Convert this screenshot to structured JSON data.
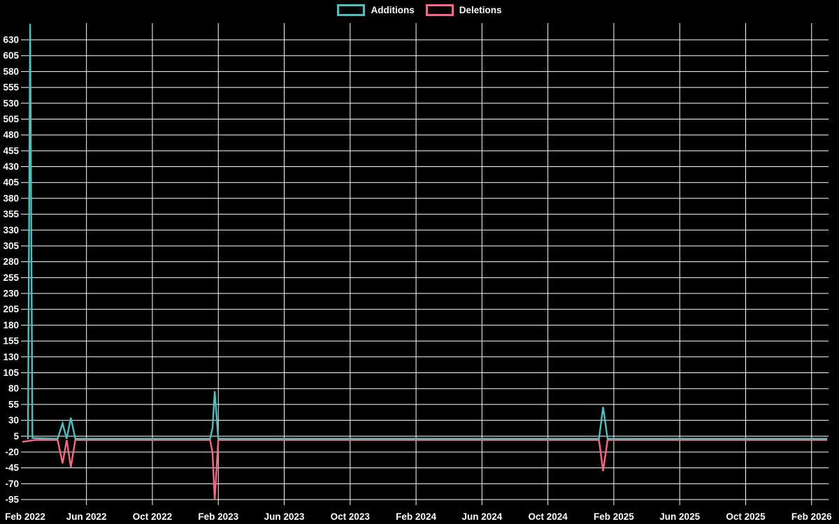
{
  "chart_data": {
    "type": "line",
    "title": "",
    "background_color": "#000000",
    "grid_color": "#ffffff",
    "text_color": "#ffffff",
    "legend": {
      "position": "top",
      "entries": [
        "Additions",
        "Deletions"
      ]
    },
    "x_axis": {
      "label": "",
      "unit": "months since Feb 2022",
      "tick_labels": [
        "Feb 2022",
        "Jun 2022",
        "Oct 2022",
        "Feb 2023",
        "Jun 2023",
        "Oct 2023",
        "Feb 2024",
        "Jun 2024",
        "Oct 2024",
        "Feb 2025",
        "Jun 2025",
        "Oct 2025",
        "Feb 2026"
      ],
      "tick_month_offsets": [
        0,
        4,
        8,
        12,
        16,
        20,
        24,
        28,
        32,
        36,
        40,
        44,
        48
      ],
      "range_months": [
        0,
        49
      ]
    },
    "y_axis": {
      "label": "",
      "ticks": [
        -95,
        -70,
        -45,
        -20,
        5,
        30,
        55,
        80,
        105,
        130,
        155,
        180,
        205,
        230,
        255,
        280,
        305,
        330,
        355,
        380,
        405,
        430,
        455,
        480,
        505,
        530,
        555,
        580,
        605,
        630
      ],
      "tick_step": 25,
      "range": [
        -103,
        656
      ]
    },
    "series": [
      {
        "name": "Additions",
        "color": "#4bc0c0",
        "note": "initial Feb 2022 spike is clipped at the top of the plot (peak >= ~655)",
        "points": [
          [
            0.45,
            0
          ],
          [
            0.58,
            655
          ],
          [
            0.72,
            2
          ],
          [
            2.25,
            1
          ],
          [
            2.55,
            25
          ],
          [
            2.8,
            1
          ],
          [
            3.05,
            34
          ],
          [
            3.32,
            1
          ],
          [
            11.5,
            1
          ],
          [
            11.65,
            18
          ],
          [
            11.78,
            76
          ],
          [
            12.0,
            1
          ],
          [
            35.1,
            1
          ],
          [
            35.35,
            51
          ],
          [
            35.62,
            1
          ],
          [
            48.95,
            1
          ]
        ]
      },
      {
        "name": "Deletions",
        "color": "#ff6384",
        "points": [
          [
            0.1,
            -4
          ],
          [
            0.9,
            -1
          ],
          [
            2.25,
            -1
          ],
          [
            2.55,
            -38
          ],
          [
            2.8,
            -1
          ],
          [
            3.05,
            -44
          ],
          [
            3.32,
            -1
          ],
          [
            11.5,
            -1
          ],
          [
            11.65,
            -22
          ],
          [
            11.78,
            -95
          ],
          [
            12.0,
            -1
          ],
          [
            35.1,
            -1
          ],
          [
            35.35,
            -50
          ],
          [
            35.62,
            -1
          ],
          [
            48.95,
            -1
          ]
        ]
      }
    ]
  }
}
